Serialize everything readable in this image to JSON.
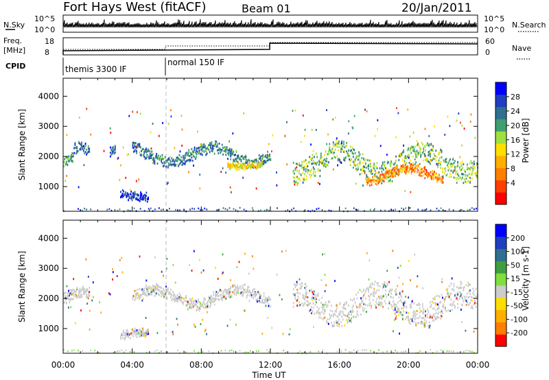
{
  "header": {
    "station": "Fort Hays West (fitACF)",
    "beam": "Beam 01",
    "date": "20/Jan/2011"
  },
  "noise_panel": {
    "left_label": "N.Sky",
    "left_ticks": [
      "10^5",
      "10^0"
    ],
    "right_label": "N.Search",
    "right_ticks": [
      "10^5",
      "10^0"
    ]
  },
  "freq_panel": {
    "left_label": "Freq.",
    "left_unit": "[MHz]",
    "left_ticks": [
      "18",
      "8"
    ],
    "right_label": "Nave",
    "right_ticks": [
      "60",
      "0"
    ]
  },
  "cpid_panel": {
    "label": "CPID",
    "modes": [
      {
        "name": "themis 3300 IF",
        "start_hour": 0
      },
      {
        "name": "normal 150 IF",
        "start_hour": 6
      }
    ]
  },
  "colors": {
    "power_scale": [
      "#0000ff",
      "#1f3fbf",
      "#2f6f8f",
      "#3f9f6f",
      "#9fdf3f",
      "#ffdf00",
      "#ffaf00",
      "#ff7f00",
      "#ff3f00",
      "#ff0000"
    ],
    "velocity_scale": [
      "#0000ff",
      "#1f3fbf",
      "#2f6f8f",
      "#3f9f3f",
      "#7fdf3f",
      "#cccccc",
      "#ffdf00",
      "#ffaf00",
      "#ff7f00",
      "#ff0000"
    ]
  },
  "chart_data": [
    {
      "type": "heatmap",
      "name": "power",
      "ylabel": "Slant Range [km]",
      "y_ticks": [
        "4000",
        "3000",
        "2000",
        "1000"
      ],
      "x_ticks": [
        "00:00",
        "04:00",
        "08:00",
        "12:00",
        "16:00",
        "20:00",
        "00:00"
      ],
      "xlim": [
        0,
        24
      ],
      "ylim": [
        180,
        4600
      ],
      "colorbar": {
        "label": "Power [dB]",
        "ticks": [
          "28",
          "24",
          "20",
          "16",
          "12",
          "8",
          "4"
        ],
        "range": [
          0,
          30
        ]
      },
      "bands": [
        {
          "x0": 0.0,
          "x1": 0.6,
          "y_mid": 1800,
          "amp": 200,
          "halfwidth": 150,
          "level": 0.35
        },
        {
          "x0": 0.6,
          "x1": 1.5,
          "y_mid": 2200,
          "amp": 100,
          "halfwidth": 150,
          "level": 0.2
        },
        {
          "x0": 2.7,
          "x1": 3.0,
          "y_mid": 2200,
          "amp": 80,
          "halfwidth": 150,
          "level": 0.15
        },
        {
          "x0": 4.0,
          "x1": 12.0,
          "y_mid": 2050,
          "amp": 250,
          "halfwidth": 170,
          "level": 0.25
        },
        {
          "x0": 9.5,
          "x1": 11.5,
          "y_mid": 1720,
          "amp": 50,
          "halfwidth": 80,
          "level": 0.55
        },
        {
          "x0": 3.3,
          "x1": 4.9,
          "y_mid": 750,
          "amp": 100,
          "halfwidth": 120,
          "level": 0.1
        },
        {
          "x0": 13.3,
          "x1": 24.0,
          "y_mid": 1800,
          "amp": 350,
          "halfwidth": 350,
          "level": 0.4
        },
        {
          "x0": 17.5,
          "x1": 22.0,
          "y_mid": 1400,
          "amp": 200,
          "halfwidth": 120,
          "level": 0.75
        }
      ]
    },
    {
      "type": "heatmap",
      "name": "velocity",
      "ylabel": "Slant Range [km]",
      "y_ticks": [
        "4000",
        "3000",
        "2000",
        "1000"
      ],
      "x_ticks": [
        "00:00",
        "04:00",
        "08:00",
        "12:00",
        "16:00",
        "20:00",
        "00:00"
      ],
      "xlabel": "Time UT",
      "xlim": [
        0,
        24
      ],
      "ylim": [
        180,
        4600
      ],
      "colorbar": {
        "label": "Velocity [m s-1]",
        "ticks": [
          "200",
          "100",
          "50",
          "15",
          "-15",
          "-50",
          "-100",
          "-200"
        ],
        "range": [
          -250,
          250
        ]
      },
      "bands": [
        {
          "x0": 0.0,
          "x1": 1.5,
          "y_mid": 2000,
          "amp": 200,
          "halfwidth": 180,
          "level": 0.0
        },
        {
          "x0": 4.0,
          "x1": 12.0,
          "y_mid": 2050,
          "amp": 250,
          "halfwidth": 170,
          "level": 0.0
        },
        {
          "x0": 3.3,
          "x1": 4.9,
          "y_mid": 750,
          "amp": 100,
          "halfwidth": 120,
          "level": 0.0
        },
        {
          "x0": 13.3,
          "x1": 24.0,
          "y_mid": 1800,
          "amp": 350,
          "halfwidth": 400,
          "level": 0.0
        }
      ]
    }
  ]
}
